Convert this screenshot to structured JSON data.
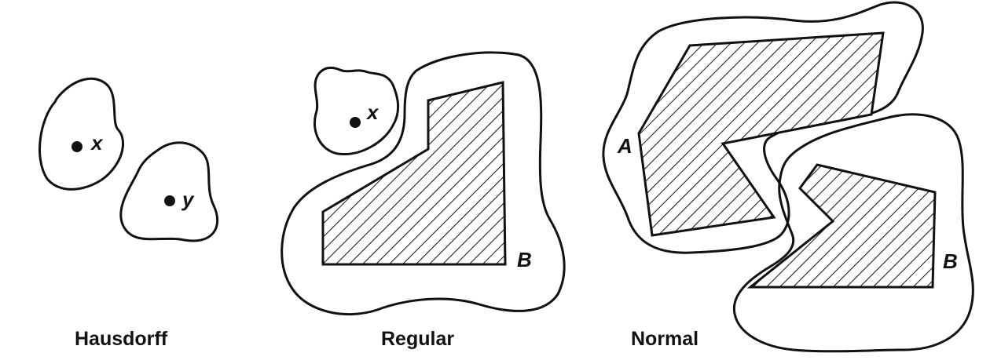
{
  "panels": [
    {
      "caption": "Hausdorff",
      "point_labels": [
        "x",
        "y"
      ]
    },
    {
      "caption": "Regular",
      "point_labels": [
        "x"
      ],
      "set_labels": [
        "B"
      ]
    },
    {
      "caption": "Normal",
      "set_labels": [
        "A",
        "B"
      ]
    }
  ]
}
